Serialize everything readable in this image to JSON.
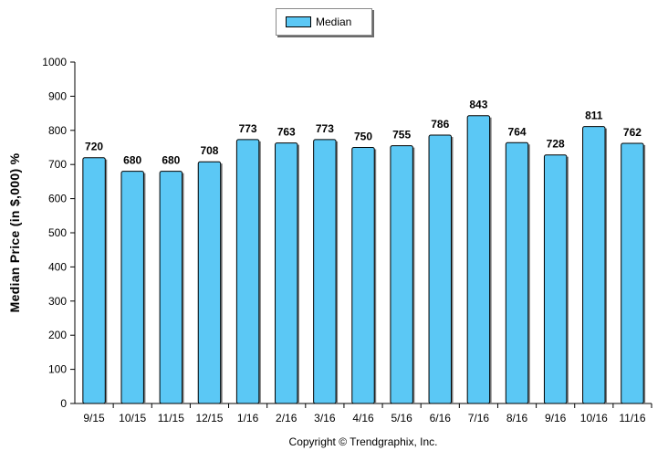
{
  "chart_data": {
    "type": "bar",
    "categories": [
      "9/15",
      "10/15",
      "11/15",
      "12/15",
      "1/16",
      "2/16",
      "3/16",
      "4/16",
      "5/16",
      "6/16",
      "7/16",
      "8/16",
      "9/16",
      "10/16",
      "11/16"
    ],
    "series": [
      {
        "name": "Median",
        "values": [
          720,
          680,
          680,
          708,
          773,
          763,
          773,
          750,
          755,
          786,
          843,
          764,
          728,
          811,
          762
        ]
      }
    ],
    "ylabel": "Median Price (in $,000) %",
    "ylim": [
      0,
      1000
    ],
    "yticks": [
      0,
      100,
      200,
      300,
      400,
      500,
      600,
      700,
      800,
      900,
      1000
    ],
    "legend": "top-center",
    "grid": false,
    "bar_color": "#5bc8f5",
    "data_labels": true
  },
  "footer": {
    "copyright": "Copyright © Trendgraphix, Inc."
  }
}
